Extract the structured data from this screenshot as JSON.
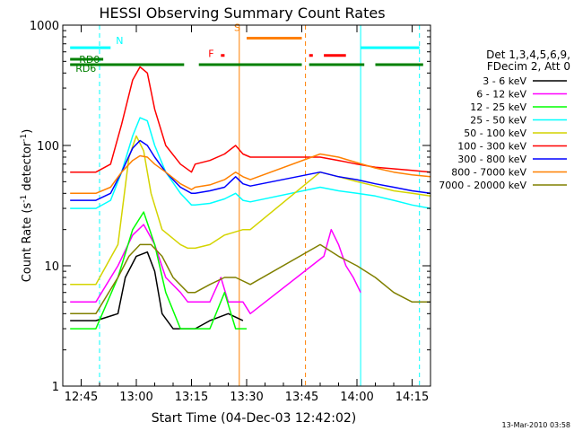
{
  "chart_data": {
    "type": "line",
    "title": "HESSI Observing Summary Count Rates",
    "xlabel": "Start Time (04-Dec-03 12:42:02)",
    "ylabel": "Count Rate (s⁻¹ detector⁻¹)",
    "ylabel_main": "Count Rate (s",
    "ylabel_sup1": "-1",
    "ylabel_mid": " detector",
    "ylabel_sup2": "-1",
    "ylabel_end": ")",
    "yscale": "log",
    "xlim": [
      "12:40",
      "14:20"
    ],
    "ylim": [
      1,
      1000
    ],
    "x_ticks": [
      "12:45",
      "13:00",
      "13:15",
      "13:30",
      "13:45",
      "14:00",
      "14:15"
    ],
    "y_ticks": [
      "1",
      "10",
      "100",
      "1000"
    ],
    "footer_date": "13-Mar-2010 03:58",
    "legend": {
      "header_line1": "Det 1,3,4,5,6,9,",
      "header_line2": "FDecim 2, Att 0"
    },
    "series": [
      {
        "name": "3 - 6 keV",
        "color": "#000000",
        "points": [
          [
            "12:42",
            3.5
          ],
          [
            "12:49",
            3.5
          ],
          [
            "12:55",
            4
          ],
          [
            "12:57",
            8
          ],
          [
            "13:00",
            12
          ],
          [
            "13:03",
            13
          ],
          [
            "13:05",
            9
          ],
          [
            "13:07",
            4
          ],
          [
            "13:10",
            3
          ],
          [
            "13:14",
            3
          ],
          [
            "13:16",
            3
          ],
          [
            "13:20",
            3.5
          ],
          [
            "13:25",
            4
          ],
          [
            "13:29",
            3.5
          ]
        ]
      },
      {
        "name": "6 - 12 keV",
        "color": "#ff00ff",
        "points": [
          [
            "12:42",
            5
          ],
          [
            "12:49",
            5
          ],
          [
            "12:55",
            10
          ],
          [
            "12:59",
            18
          ],
          [
            "13:02",
            22
          ],
          [
            "13:05",
            15
          ],
          [
            "13:08",
            8
          ],
          [
            "13:12",
            6
          ],
          [
            "13:14",
            5
          ],
          [
            "13:16",
            5
          ],
          [
            "13:20",
            5
          ],
          [
            "13:23",
            8
          ],
          [
            "13:25",
            5
          ],
          [
            "13:29",
            5
          ],
          [
            "13:31",
            4
          ],
          [
            "13:51",
            12
          ],
          [
            "13:53",
            20
          ],
          [
            "13:55",
            15
          ],
          [
            "13:57",
            10
          ],
          [
            "13:59",
            8
          ],
          [
            "14:01",
            6
          ]
        ]
      },
      {
        "name": "12 - 25 keV",
        "color": "#00ff00",
        "points": [
          [
            "12:42",
            3
          ],
          [
            "12:49",
            3
          ],
          [
            "12:55",
            8
          ],
          [
            "12:59",
            20
          ],
          [
            "13:02",
            28
          ],
          [
            "13:05",
            15
          ],
          [
            "13:08",
            6
          ],
          [
            "13:12",
            3
          ],
          [
            "13:14",
            3
          ],
          [
            "13:16",
            3
          ],
          [
            "13:20",
            3
          ],
          [
            "13:24",
            6
          ],
          [
            "13:27",
            3
          ],
          [
            "13:30",
            3
          ]
        ]
      },
      {
        "name": "25 - 50 keV",
        "color": "#00ffff",
        "points": [
          [
            "12:42",
            30
          ],
          [
            "12:49",
            30
          ],
          [
            "12:53",
            35
          ],
          [
            "12:56",
            60
          ],
          [
            "12:59",
            120
          ],
          [
            "13:01",
            170
          ],
          [
            "13:03",
            160
          ],
          [
            "13:05",
            100
          ],
          [
            "13:08",
            60
          ],
          [
            "13:12",
            40
          ],
          [
            "13:15",
            32
          ],
          [
            "13:16",
            32
          ],
          [
            "13:20",
            33
          ],
          [
            "13:24",
            36
          ],
          [
            "13:27",
            40
          ],
          [
            "13:29",
            35
          ],
          [
            "13:31",
            34
          ],
          [
            "13:50",
            45
          ],
          [
            "13:55",
            42
          ],
          [
            "14:00",
            40
          ],
          [
            "14:05",
            38
          ],
          [
            "14:10",
            35
          ],
          [
            "14:15",
            32
          ],
          [
            "14:20",
            30
          ]
        ]
      },
      {
        "name": "50 - 100 keV",
        "color": "#d4d400",
        "points": [
          [
            "12:42",
            7
          ],
          [
            "12:49",
            7
          ],
          [
            "12:55",
            15
          ],
          [
            "12:58",
            80
          ],
          [
            "13:00",
            120
          ],
          [
            "13:02",
            90
          ],
          [
            "13:04",
            40
          ],
          [
            "13:07",
            20
          ],
          [
            "13:12",
            15
          ],
          [
            "13:14",
            14
          ],
          [
            "13:16",
            14
          ],
          [
            "13:20",
            15
          ],
          [
            "13:24",
            18
          ],
          [
            "13:29",
            20
          ],
          [
            "13:31",
            20
          ],
          [
            "13:50",
            60
          ],
          [
            "13:55",
            55
          ],
          [
            "14:00",
            50
          ],
          [
            "14:05",
            46
          ],
          [
            "14:10",
            42
          ],
          [
            "14:15",
            40
          ],
          [
            "14:20",
            38
          ]
        ]
      },
      {
        "name": "100 - 300 keV",
        "color": "#ff0000",
        "points": [
          [
            "12:42",
            60
          ],
          [
            "12:49",
            60
          ],
          [
            "12:53",
            70
          ],
          [
            "12:56",
            150
          ],
          [
            "12:59",
            350
          ],
          [
            "13:01",
            450
          ],
          [
            "13:03",
            400
          ],
          [
            "13:05",
            200
          ],
          [
            "13:08",
            100
          ],
          [
            "13:12",
            70
          ],
          [
            "13:15",
            60
          ],
          [
            "13:16",
            70
          ],
          [
            "13:20",
            75
          ],
          [
            "13:24",
            85
          ],
          [
            "13:27",
            100
          ],
          [
            "13:29",
            85
          ],
          [
            "13:31",
            80
          ],
          [
            "13:50",
            80
          ],
          [
            "13:55",
            75
          ],
          [
            "14:00",
            70
          ],
          [
            "14:05",
            66
          ],
          [
            "14:10",
            64
          ],
          [
            "14:15",
            62
          ],
          [
            "14:20",
            60
          ]
        ]
      },
      {
        "name": "300 - 800 keV",
        "color": "#0000ff",
        "points": [
          [
            "12:42",
            35
          ],
          [
            "12:49",
            35
          ],
          [
            "12:53",
            40
          ],
          [
            "12:56",
            60
          ],
          [
            "12:59",
            95
          ],
          [
            "13:01",
            110
          ],
          [
            "13:03",
            100
          ],
          [
            "13:05",
            80
          ],
          [
            "13:08",
            60
          ],
          [
            "13:12",
            45
          ],
          [
            "13:15",
            40
          ],
          [
            "13:16",
            40
          ],
          [
            "13:20",
            42
          ],
          [
            "13:24",
            45
          ],
          [
            "13:27",
            55
          ],
          [
            "13:29",
            48
          ],
          [
            "13:31",
            46
          ],
          [
            "13:50",
            60
          ],
          [
            "13:55",
            55
          ],
          [
            "14:00",
            52
          ],
          [
            "14:05",
            48
          ],
          [
            "14:10",
            45
          ],
          [
            "14:15",
            42
          ],
          [
            "14:20",
            40
          ]
        ]
      },
      {
        "name": "800 - 7000 keV",
        "color": "#ff8000",
        "points": [
          [
            "12:42",
            40
          ],
          [
            "12:49",
            40
          ],
          [
            "12:53",
            45
          ],
          [
            "12:56",
            60
          ],
          [
            "12:59",
            75
          ],
          [
            "13:01",
            82
          ],
          [
            "13:03",
            80
          ],
          [
            "13:05",
            70
          ],
          [
            "13:08",
            60
          ],
          [
            "13:12",
            48
          ],
          [
            "13:15",
            43
          ],
          [
            "13:16",
            45
          ],
          [
            "13:20",
            47
          ],
          [
            "13:24",
            52
          ],
          [
            "13:27",
            60
          ],
          [
            "13:29",
            55
          ],
          [
            "13:31",
            52
          ],
          [
            "13:50",
            85
          ],
          [
            "13:55",
            80
          ],
          [
            "14:00",
            72
          ],
          [
            "14:05",
            65
          ],
          [
            "14:10",
            60
          ],
          [
            "14:15",
            57
          ],
          [
            "14:20",
            55
          ]
        ]
      },
      {
        "name": "7000 - 20000 keV",
        "color": "#808000",
        "points": [
          [
            "12:42",
            4
          ],
          [
            "12:49",
            4
          ],
          [
            "12:55",
            8
          ],
          [
            "12:58",
            12
          ],
          [
            "13:01",
            15
          ],
          [
            "13:04",
            15
          ],
          [
            "13:07",
            12
          ],
          [
            "13:10",
            8
          ],
          [
            "13:14",
            6
          ],
          [
            "13:16",
            6
          ],
          [
            "13:20",
            7
          ],
          [
            "13:24",
            8
          ],
          [
            "13:27",
            8
          ],
          [
            "13:31",
            7
          ],
          [
            "13:50",
            15
          ],
          [
            "13:55",
            12
          ],
          [
            "14:00",
            10
          ],
          [
            "14:05",
            8
          ],
          [
            "14:10",
            6
          ],
          [
            "14:15",
            5
          ],
          [
            "14:20",
            5
          ]
        ]
      }
    ],
    "flag_bars": [
      {
        "label": "N",
        "color": "#00ffff",
        "value": 650,
        "segments": [
          [
            "12:42",
            "12:53"
          ],
          [
            "14:01",
            "14:17"
          ]
        ]
      },
      {
        "label": "S",
        "color": "#ff8000",
        "value": 780,
        "segments": [
          [
            "13:30",
            "13:45"
          ]
        ]
      },
      {
        "label": "F",
        "color": "#ff0000",
        "value": 560,
        "segments": [
          [
            "13:23",
            "13:24"
          ],
          [
            "13:47",
            "13:48"
          ],
          [
            "13:51",
            "13:57"
          ]
        ]
      },
      {
        "label": "RD0",
        "color": "#008000",
        "value": 520,
        "segments": [
          [
            "12:42",
            "12:51"
          ]
        ]
      },
      {
        "label": "RD6",
        "color": "#008000",
        "value": 470,
        "segments": [
          [
            "12:42",
            "13:13"
          ],
          [
            "13:17",
            "13:45"
          ],
          [
            "13:47",
            "14:02"
          ],
          [
            "14:05",
            "14:18"
          ]
        ]
      }
    ],
    "vertical_markers": [
      {
        "time": "12:50",
        "color": "#00ffff",
        "style": "dashed"
      },
      {
        "time": "13:28",
        "color": "#ff8000",
        "style": "solid"
      },
      {
        "time": "13:46",
        "color": "#ff8000",
        "style": "dashed"
      },
      {
        "time": "14:01",
        "color": "#00ffff",
        "style": "solid"
      },
      {
        "time": "14:17",
        "color": "#00ffff",
        "style": "dashed"
      }
    ]
  }
}
